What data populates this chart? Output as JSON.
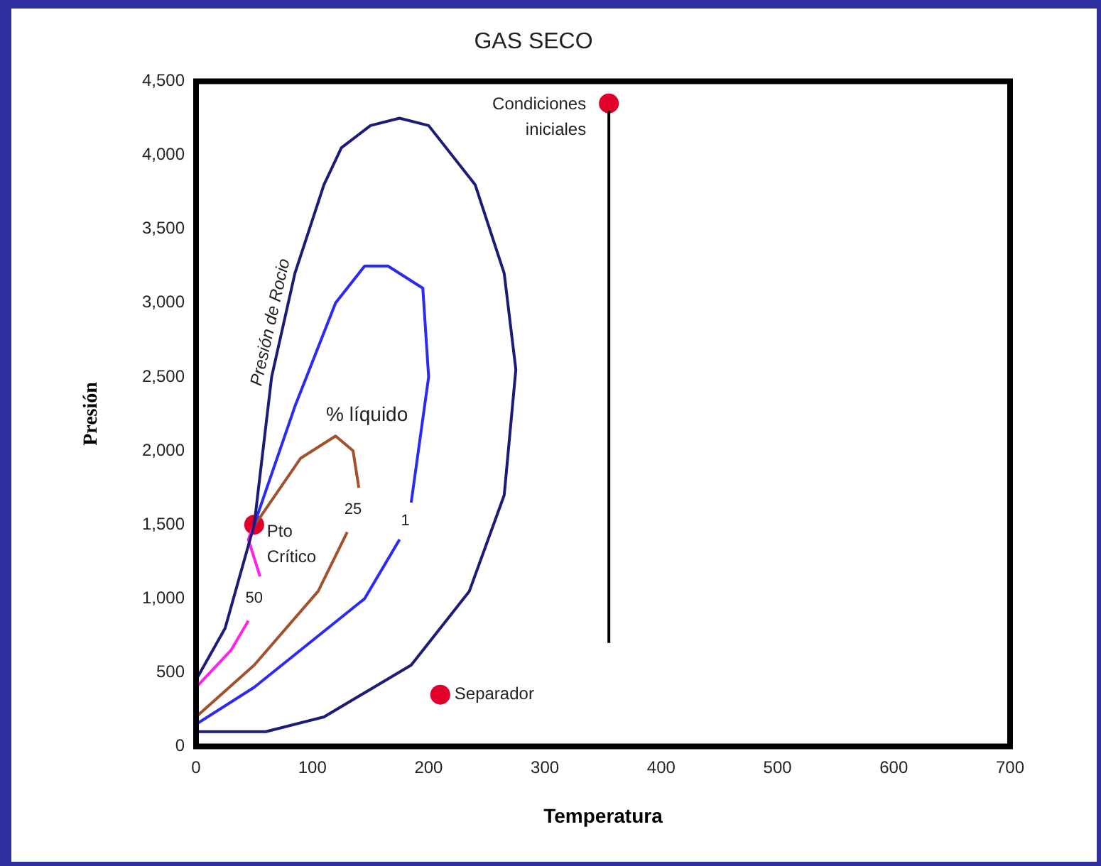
{
  "chart_data": {
    "type": "line",
    "title": "GAS SECO",
    "xlabel": "Temperatura",
    "ylabel": "Presión",
    "xlim": [
      0,
      700
    ],
    "xticks": [
      0,
      100,
      200,
      300,
      400,
      500,
      600,
      700
    ],
    "ylim": [
      0,
      4500
    ],
    "yticks": [
      {
        "value": 0,
        "label": "0"
      },
      {
        "value": 500,
        "label": "500"
      },
      {
        "value": 1000,
        "label": "1,000"
      },
      {
        "value": 1500,
        "label": "1,500"
      },
      {
        "value": 2000,
        "label": "2,000"
      },
      {
        "value": 2500,
        "label": "2,500"
      },
      {
        "value": 3000,
        "label": "3,000"
      },
      {
        "value": 3500,
        "label": "3,500"
      },
      {
        "value": 4000,
        "label": "4,000"
      },
      {
        "value": 4500,
        "label": "4,500"
      }
    ],
    "grid": false,
    "legend": false,
    "series": [
      {
        "name": "Presión de Rocio",
        "color": "#1c1c78",
        "x": [
          0,
          25,
          50,
          65,
          85,
          110,
          125,
          150,
          175,
          200,
          240,
          265,
          275,
          265,
          235,
          185,
          110,
          60,
          0
        ],
        "values": [
          450,
          800,
          1500,
          2500,
          3200,
          3800,
          4050,
          4200,
          4250,
          4200,
          3800,
          3200,
          2550,
          1700,
          1050,
          550,
          200,
          100,
          100
        ]
      },
      {
        "name": "1",
        "color": "#2a2af0",
        "x": [
          0,
          50,
          145,
          175,
          180,
          185,
          200,
          195,
          165,
          145,
          120,
          85,
          50
        ],
        "values": [
          150,
          400,
          1000,
          1400,
          null,
          1650,
          2500,
          3100,
          3250,
          3250,
          3000,
          2300,
          1500
        ]
      },
      {
        "name": "25",
        "color": "#a0522d",
        "x": [
          0,
          50,
          105,
          130,
          135,
          140,
          135,
          120,
          90,
          55,
          50
        ],
        "values": [
          200,
          550,
          1050,
          1450,
          null,
          1750,
          2000,
          2100,
          1950,
          1550,
          1500
        ]
      },
      {
        "name": "50",
        "color": "#ff22ee",
        "x": [
          0,
          30,
          45,
          50,
          55,
          45,
          50
        ],
        "values": [
          400,
          650,
          850,
          null,
          1150,
          1400,
          1500
        ]
      },
      {
        "color": "#000000",
        "x": [
          355,
          355
        ],
        "values": [
          700,
          4300
        ]
      },
      {
        "type": "scatter",
        "name": "Pto Crítico",
        "color": "#e0002a",
        "x": [
          50
        ],
        "values": [
          1500
        ]
      },
      {
        "type": "scatter",
        "name": "Condiciones iniciales",
        "color": "#e0002a",
        "x": [
          355
        ],
        "values": [
          4350
        ]
      },
      {
        "type": "scatter",
        "name": "Separador",
        "color": "#e0002a",
        "x": [
          210
        ],
        "values": [
          350
        ]
      }
    ],
    "annotations": [
      "% líquido"
    ]
  }
}
